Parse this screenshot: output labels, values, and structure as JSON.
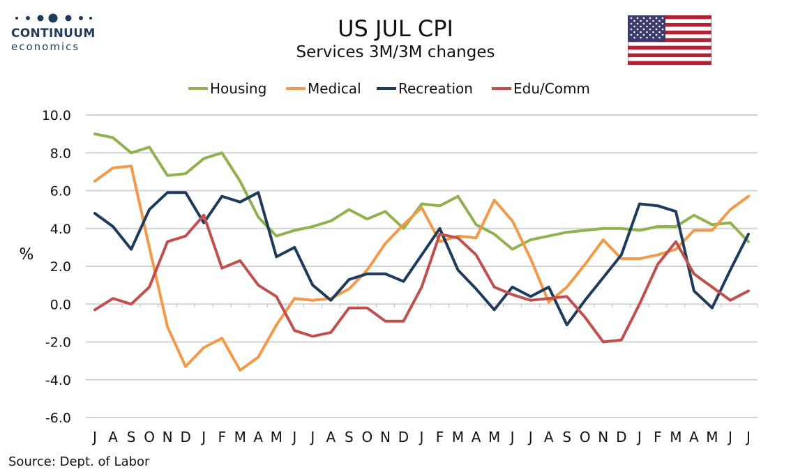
{
  "logo": {
    "word1": "CONTINUUM",
    "word2": "economics"
  },
  "flag_icon": "us-flag-icon",
  "source": "Source: Dept. of Labor",
  "chart_data": {
    "type": "line",
    "title": "US JUL CPI",
    "subtitle": "Services 3M/3M changes",
    "xlabel": "",
    "ylabel": "%",
    "ylim": [
      -6.0,
      10.0
    ],
    "yticks": [
      "10.0",
      "8.0",
      "6.0",
      "4.0",
      "2.0",
      "0.0",
      "-2.0",
      "-4.0",
      "-6.0"
    ],
    "ytick_values": [
      10,
      8,
      6,
      4,
      2,
      0,
      -2,
      -4,
      -6
    ],
    "grid": "horizontal",
    "legend_position": "top",
    "categories": [
      "J",
      "A",
      "S",
      "O",
      "N",
      "D",
      "J",
      "F",
      "M",
      "A",
      "M",
      "J",
      "J",
      "A",
      "S",
      "O",
      "N",
      "D",
      "J",
      "F",
      "M",
      "A",
      "M",
      "J",
      "J",
      "A",
      "S",
      "O",
      "N",
      "D",
      "J",
      "F",
      "M",
      "A",
      "M",
      "J",
      "J"
    ],
    "series": [
      {
        "name": "Housing",
        "color": "#8fb14e",
        "values": [
          9.0,
          8.8,
          8.0,
          8.3,
          6.8,
          6.9,
          7.7,
          8.0,
          6.5,
          4.6,
          3.6,
          3.9,
          4.1,
          4.4,
          5.0,
          4.5,
          4.9,
          4.0,
          5.3,
          5.2,
          5.7,
          4.2,
          3.7,
          2.9,
          3.4,
          3.6,
          3.8,
          3.9,
          4.0,
          4.0,
          3.9,
          4.1,
          4.1,
          4.7,
          4.2,
          4.3,
          3.3
        ]
      },
      {
        "name": "Medical",
        "color": "#f29a4a",
        "values": [
          6.5,
          7.2,
          7.3,
          3.0,
          -1.2,
          -3.3,
          -2.3,
          -1.8,
          -3.5,
          -2.8,
          -1.1,
          0.3,
          0.2,
          0.3,
          0.8,
          1.8,
          3.2,
          4.2,
          5.1,
          3.3,
          3.6,
          3.5,
          5.5,
          4.4,
          2.4,
          0.1,
          0.9,
          2.1,
          3.4,
          2.4,
          2.4,
          2.6,
          2.9,
          3.9,
          3.9,
          5.0,
          5.7
        ]
      },
      {
        "name": "Recreation",
        "color": "#1f3b5c",
        "values": [
          4.8,
          4.1,
          2.9,
          5.0,
          5.9,
          5.9,
          4.3,
          5.7,
          5.4,
          5.9,
          2.5,
          3.0,
          1.0,
          0.2,
          1.3,
          1.6,
          1.6,
          1.2,
          2.6,
          4.0,
          1.8,
          0.8,
          -0.3,
          0.9,
          0.4,
          0.9,
          -1.1,
          0.2,
          1.4,
          2.6,
          5.3,
          5.2,
          4.9,
          0.7,
          -0.2,
          1.8,
          3.7
        ]
      },
      {
        "name": "Edu/Comm",
        "color": "#c0504d",
        "values": [
          -0.3,
          0.3,
          0.0,
          0.9,
          3.3,
          3.6,
          4.7,
          1.9,
          2.3,
          1.0,
          0.4,
          -1.4,
          -1.7,
          -1.5,
          -0.2,
          -0.2,
          -0.9,
          -0.9,
          0.9,
          3.7,
          3.5,
          2.6,
          0.9,
          0.5,
          0.2,
          0.3,
          0.4,
          -0.7,
          -2.0,
          -1.9,
          0.0,
          2.1,
          3.3,
          1.6,
          0.9,
          0.2,
          0.7
        ]
      }
    ]
  }
}
